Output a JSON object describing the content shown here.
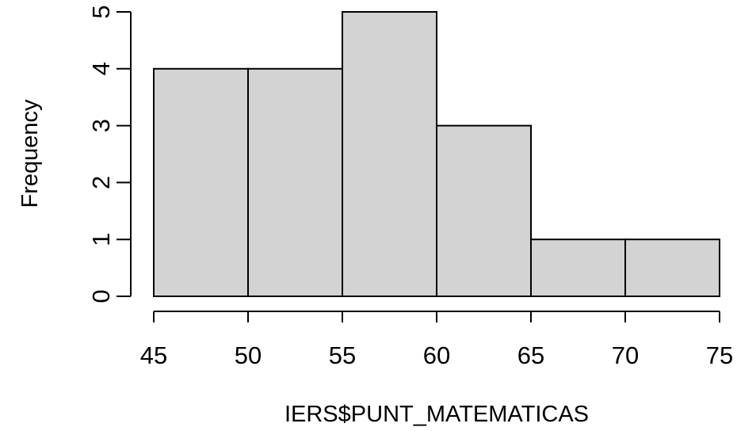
{
  "chart_data": {
    "type": "bar",
    "subtype": "histogram",
    "title": "",
    "xlabel": "IERS$PUNT_MATEMATICAS",
    "ylabel": "Frequency",
    "bins": [
      {
        "start": 45,
        "end": 50,
        "count": 4
      },
      {
        "start": 50,
        "end": 55,
        "count": 4
      },
      {
        "start": 55,
        "end": 60,
        "count": 5
      },
      {
        "start": 60,
        "end": 65,
        "count": 3
      },
      {
        "start": 65,
        "end": 70,
        "count": 1
      },
      {
        "start": 70,
        "end": 75,
        "count": 1
      }
    ],
    "xlim": [
      45,
      75
    ],
    "ylim": [
      0,
      5
    ],
    "x_ticks": [
      "45",
      "50",
      "55",
      "60",
      "65",
      "70",
      "75"
    ],
    "y_ticks": [
      "0",
      "1",
      "2",
      "3",
      "4",
      "5"
    ],
    "bar_color": "#d3d3d3",
    "edge_color": "#000000",
    "grid": false,
    "legend": "none"
  }
}
